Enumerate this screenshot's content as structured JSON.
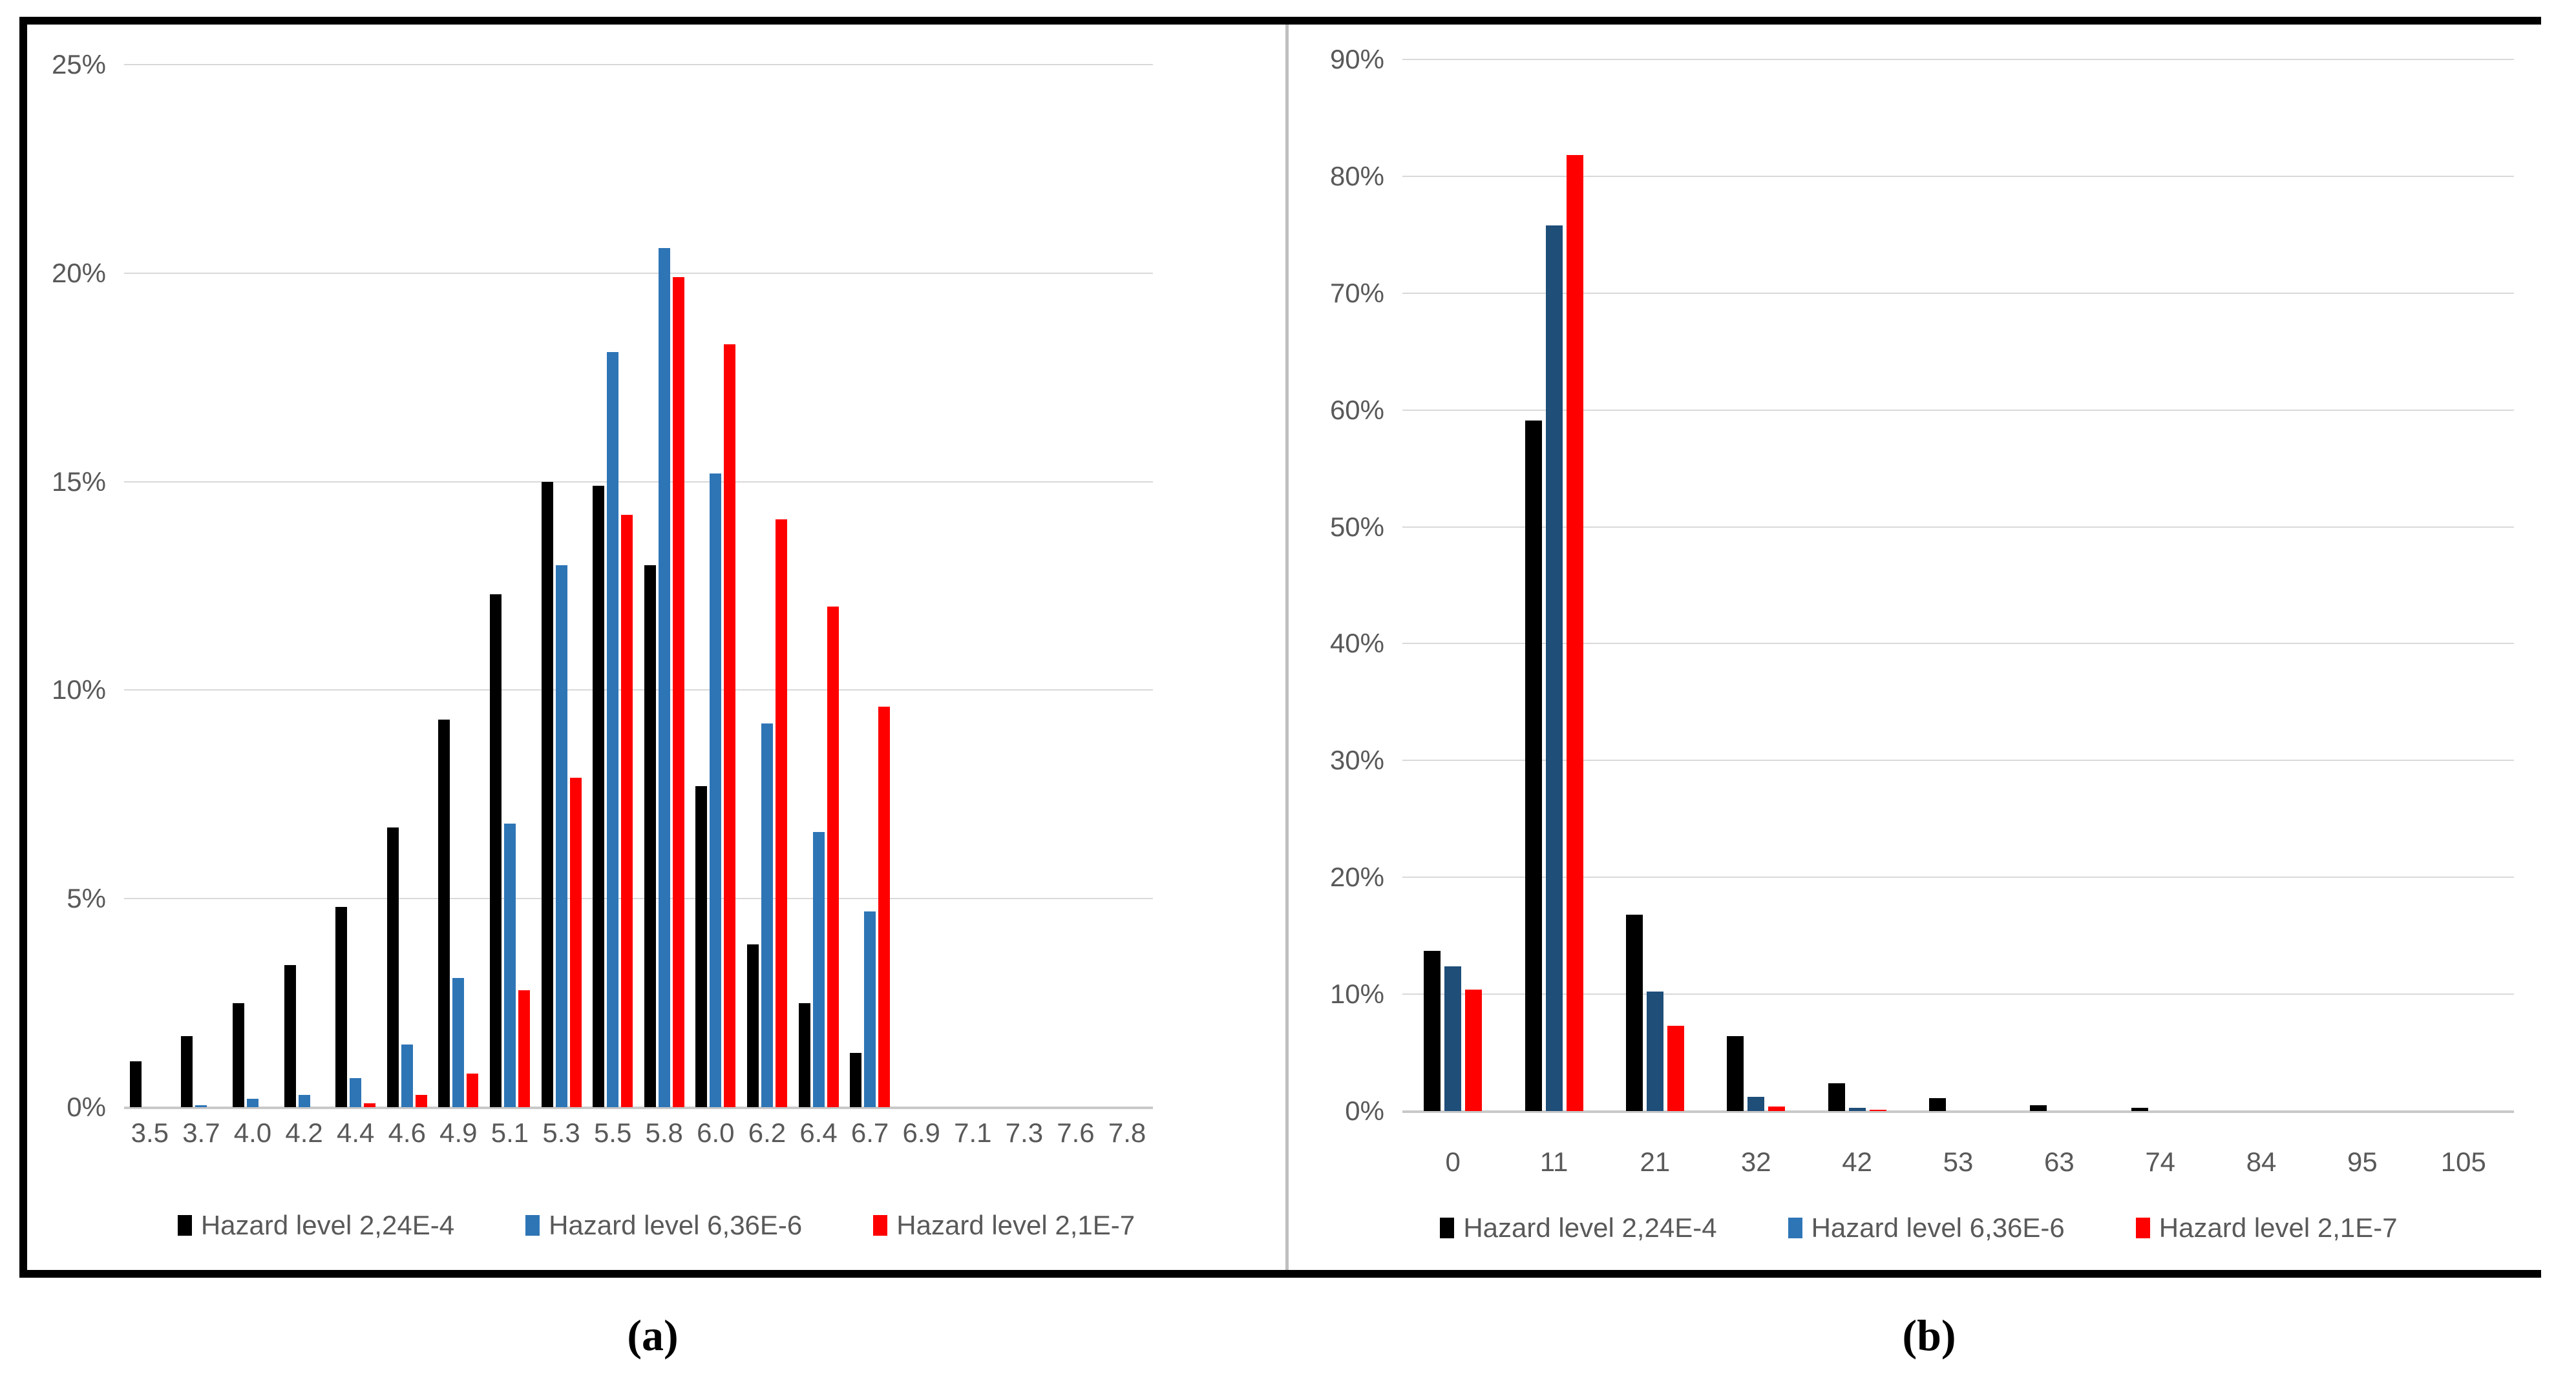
{
  "figure": {
    "caption_a": "(a)",
    "caption_b": "(b)",
    "colors": {
      "black_series": "#000000",
      "blue_series_a": "#2e75b6",
      "blue_series_b": "#1f4e79",
      "red_series": "#ff0000",
      "gridline": "#d9d9d9",
      "axis_line": "#c9c9c9",
      "tick_label": "#595959",
      "frame_border": "#000000",
      "panel_divider": "#bfbfbf"
    }
  },
  "chart_data": [
    {
      "type": "bar",
      "panel": "a",
      "title": "",
      "xlabel": "",
      "ylabel": "",
      "ylim": [
        0,
        25
      ],
      "ytick_step": 5,
      "yticks": [
        "25%",
        "20%",
        "15%",
        "10%",
        "5%",
        "0%"
      ],
      "grid": true,
      "legend_position": "bottom",
      "categories": [
        "3.5",
        "3.7",
        "4.0",
        "4.2",
        "4.4",
        "4.6",
        "4.9",
        "5.1",
        "5.3",
        "5.5",
        "5.8",
        "6.0",
        "6.2",
        "6.4",
        "6.7",
        "6.9",
        "7.1",
        "7.3",
        "7.6",
        "7.8"
      ],
      "series": [
        {
          "name": "Hazard level 2,24E-4",
          "color": "#000000",
          "legend_color": "#000000",
          "values": [
            1.1,
            1.7,
            2.5,
            3.4,
            4.8,
            6.7,
            9.3,
            12.3,
            15.0,
            14.9,
            13.0,
            7.7,
            3.9,
            2.5,
            1.3,
            0,
            0,
            0,
            0,
            0
          ]
        },
        {
          "name": "Hazard level 6,36E-6",
          "color": "#2e75b6",
          "legend_color": "#2e75b6",
          "values": [
            0,
            0.05,
            0.2,
            0.3,
            0.7,
            1.5,
            3.1,
            6.8,
            13.0,
            18.1,
            20.6,
            15.2,
            9.2,
            6.6,
            4.7,
            0,
            0,
            0,
            0,
            0
          ]
        },
        {
          "name": "Hazard level 2,1E-7",
          "color": "#ff0000",
          "legend_color": "#ff0000",
          "values": [
            0,
            0,
            0,
            0,
            0.1,
            0.3,
            0.8,
            2.8,
            7.9,
            14.2,
            19.9,
            18.3,
            14.1,
            12.0,
            9.6,
            0,
            0,
            0,
            0,
            0
          ]
        }
      ]
    },
    {
      "type": "bar",
      "panel": "b",
      "title": "",
      "xlabel": "",
      "ylabel": "",
      "ylim": [
        0,
        90
      ],
      "ytick_step": 10,
      "yticks": [
        "90%",
        "80%",
        "70%",
        "60%",
        "50%",
        "40%",
        "30%",
        "20%",
        "10%",
        "0%"
      ],
      "grid": true,
      "legend_position": "bottom",
      "categories": [
        "0",
        "11",
        "21",
        "32",
        "42",
        "53",
        "63",
        "74",
        "84",
        "95",
        "105"
      ],
      "series": [
        {
          "name": "Hazard level 2,24E-4",
          "color": "#000000",
          "legend_color": "#000000",
          "values": [
            13.7,
            59.1,
            16.8,
            6.4,
            2.4,
            1.1,
            0.5,
            0.3,
            0,
            0,
            0
          ]
        },
        {
          "name": "Hazard level 6,36E-6",
          "color": "#1f4e79",
          "legend_color": "#2e75b6",
          "values": [
            12.4,
            75.8,
            10.2,
            1.2,
            0.3,
            0,
            0,
            0,
            0,
            0,
            0
          ]
        },
        {
          "name": "Hazard level 2,1E-7",
          "color": "#ff0000",
          "legend_color": "#ff0000",
          "values": [
            10.4,
            81.8,
            7.3,
            0.4,
            0.1,
            0,
            0,
            0,
            0,
            0,
            0
          ]
        }
      ]
    }
  ]
}
